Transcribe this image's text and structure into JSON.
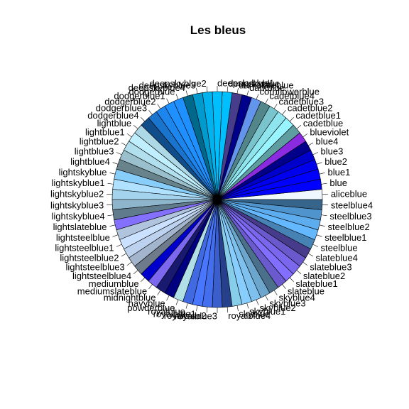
{
  "chart_data": {
    "type": "pie",
    "title": "Les bleus",
    "categories": [
      "aliceblue",
      "blue",
      "blue1",
      "blue2",
      "blue3",
      "blue4",
      "blueviolet",
      "cadetblue",
      "cadetblue1",
      "cadetblue2",
      "cadetblue3",
      "cadetblue4",
      "cornflowerblue",
      "darkblue",
      "darkslateblue",
      "deepskyblue",
      "deepskyblue1",
      "deepskyblue2",
      "deepskyblue3",
      "deepskyblue4",
      "dodgerblue",
      "dodgerblue1",
      "dodgerblue2",
      "dodgerblue3",
      "dodgerblue4",
      "lightblue",
      "lightblue1",
      "lightblue2",
      "lightblue3",
      "lightblue4",
      "lightskyblue",
      "lightskyblue1",
      "lightskyblue2",
      "lightskyblue3",
      "lightskyblue4",
      "lightslateblue",
      "lightsteelblue",
      "lightsteelblue1",
      "lightsteelblue2",
      "lightsteelblue3",
      "lightsteelblue4",
      "mediumblue",
      "mediumslateblue",
      "midnightblue",
      "navyblue",
      "powderblue",
      "royalblue",
      "royalblue1",
      "royalblue2",
      "royalblue3",
      "royalblue4",
      "skyblue",
      "skyblue1",
      "skyblue2",
      "skyblue3",
      "skyblue4",
      "slateblue",
      "slateblue1",
      "slateblue2",
      "slateblue3",
      "slateblue4",
      "steelblue",
      "steelblue1",
      "steelblue2",
      "steelblue3",
      "steelblue4"
    ],
    "colors": [
      "#F0F8FF",
      "#0000FF",
      "#0000FF",
      "#0000EE",
      "#0000CD",
      "#00008B",
      "#8A2BE2",
      "#5F9EA0",
      "#98F5FF",
      "#8EE5EE",
      "#7AC5CD",
      "#53868B",
      "#6495ED",
      "#00008B",
      "#483D8B",
      "#00BFFF",
      "#00BFFF",
      "#00B2EE",
      "#009ACD",
      "#00688B",
      "#1E90FF",
      "#1E90FF",
      "#1C86EE",
      "#1874CD",
      "#104E8B",
      "#ADD8E6",
      "#BFEFFF",
      "#B2DFEE",
      "#9AC0CD",
      "#68838B",
      "#87CEFA",
      "#B0E2FF",
      "#A4D3EE",
      "#8DB6CD",
      "#607B8B",
      "#8470FF",
      "#B0C4DE",
      "#CAE1FF",
      "#BCD2EE",
      "#A2B5CD",
      "#6E7B8B",
      "#0000CD",
      "#7B68EE",
      "#191970",
      "#000080",
      "#B0E0E6",
      "#4169E1",
      "#4876FF",
      "#436EEE",
      "#3A5FCD",
      "#27408B",
      "#87CEEB",
      "#87CEFF",
      "#7EC0EE",
      "#6CA6CD",
      "#4A708B",
      "#6A5ACD",
      "#836FFF",
      "#7A67EE",
      "#6959CD",
      "#473C8B",
      "#4682B4",
      "#63B8FF",
      "#5CACEE",
      "#4F94CD",
      "#36648B"
    ],
    "values": [
      1,
      1,
      1,
      1,
      1,
      1,
      1,
      1,
      1,
      1,
      1,
      1,
      1,
      1,
      1,
      1,
      1,
      1,
      1,
      1,
      1,
      1,
      1,
      1,
      1,
      1,
      1,
      1,
      1,
      1,
      1,
      1,
      1,
      1,
      1,
      1,
      1,
      1,
      1,
      1,
      1,
      1,
      1,
      1,
      1,
      1,
      1,
      1,
      1,
      1,
      1,
      1,
      1,
      1,
      1,
      1,
      1,
      1,
      1,
      1,
      1,
      1,
      1,
      1,
      1,
      1
    ],
    "start_angle_deg": 0,
    "direction": "counterclockwise",
    "legend": "none"
  }
}
